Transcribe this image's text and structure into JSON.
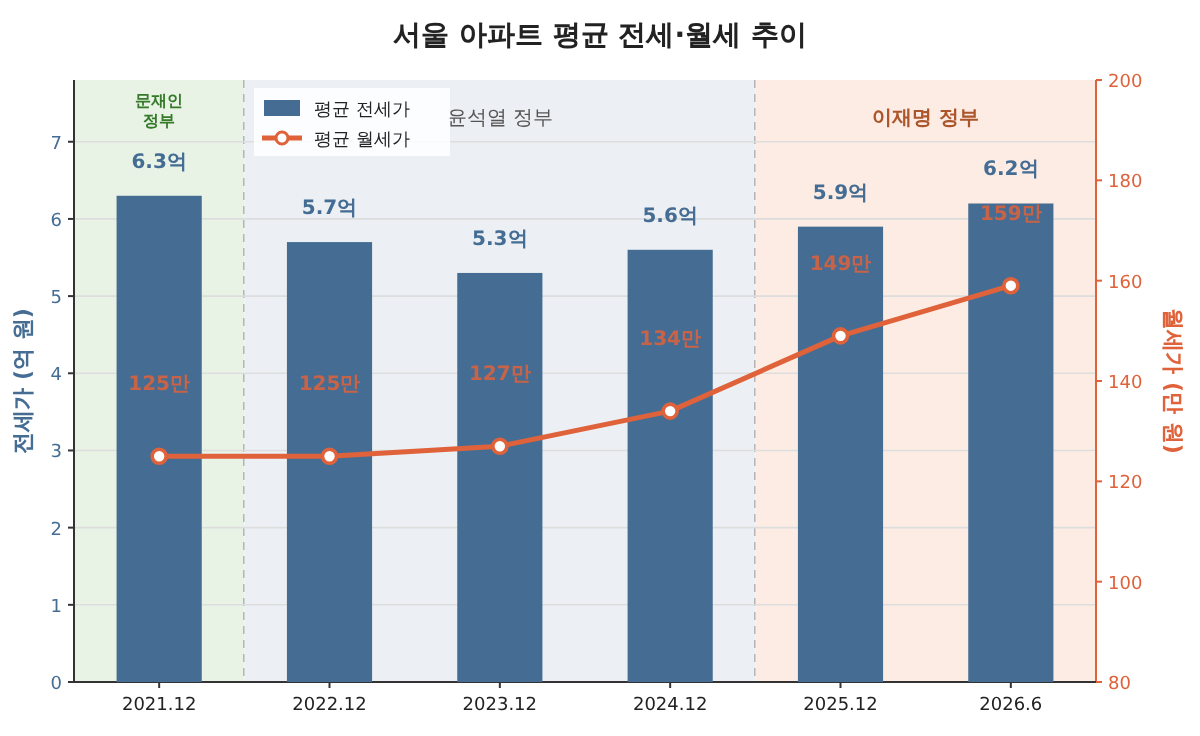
{
  "chart_data": {
    "type": "bar",
    "title": "서울 아파트 평균 전세·월세 추이",
    "categories": [
      "2021.12",
      "2022.12",
      "2023.12",
      "2024.12",
      "2025.12",
      "2026.6"
    ],
    "series": [
      {
        "name": "평균 전세가",
        "color": "#456d94",
        "values": [
          6.3,
          5.7,
          5.3,
          5.6,
          5.9,
          6.2
        ],
        "value_labels": [
          "6.3억",
          "5.7억",
          "5.3억",
          "5.6억",
          "5.9억",
          "6.2억"
        ]
      },
      {
        "name": "평균 월세가",
        "type": "line",
        "axis": "y2",
        "color": "#e0623a",
        "marker": "circle",
        "values": [
          125,
          125,
          127,
          134,
          149,
          159
        ],
        "value_labels": [
          "125만",
          "125만",
          "127만",
          "134만",
          "149만",
          "159만"
        ]
      }
    ],
    "ylabel": "전세가 (억 원)",
    "y2label": "월세가 (만 원)",
    "ylim": [
      0,
      7.8
    ],
    "yticks": [
      0,
      1,
      2,
      3,
      4,
      5,
      6,
      7
    ],
    "y2lim": [
      80,
      200
    ],
    "y2ticks": [
      80,
      100,
      120,
      140,
      160,
      180,
      200
    ],
    "bands": [
      {
        "axis": "x",
        "from": "2021.12",
        "to": "2021.12",
        "label": "문재인\n정부",
        "color": "#e8f3e6"
      },
      {
        "axis": "x",
        "from": "2022.12",
        "to": "2024.12",
        "label": "윤석열 정부",
        "color": "#ecf0f4"
      },
      {
        "axis": "x",
        "from": "2025.12",
        "to": "2026.6",
        "label": "이재명 정부",
        "color": "#fcece4"
      }
    ],
    "grid": "y",
    "legend": "top left"
  }
}
